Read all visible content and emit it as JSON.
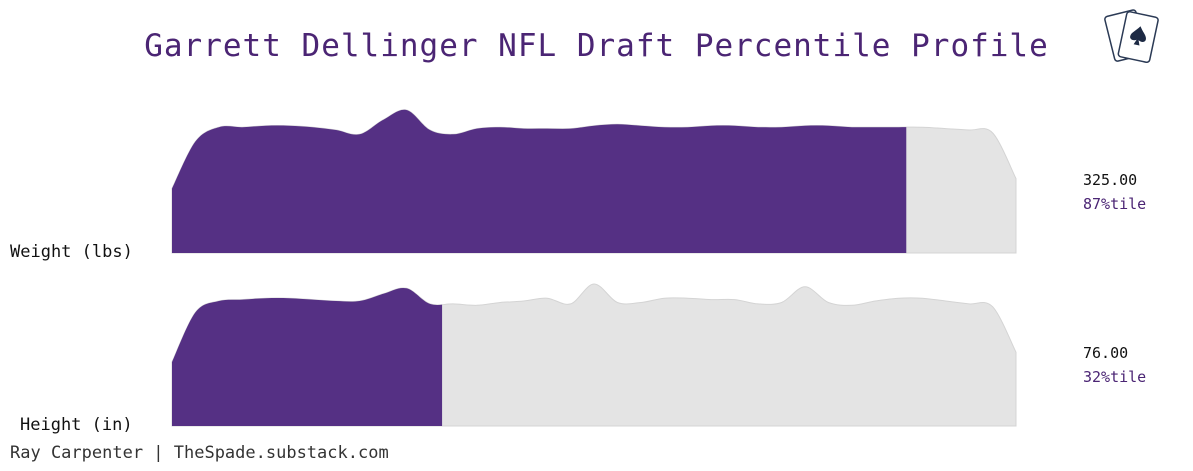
{
  "title": "Garrett Dellinger NFL Draft Percentile Profile",
  "credit": "Ray Carpenter | TheSpade.substack.com",
  "colors": {
    "filled": "#553084",
    "unfilled": "#e4e4e4",
    "unfilled_stroke": "#d4d4d4",
    "title": "#4b2574"
  },
  "chart_data": {
    "type": "area",
    "title": "Garrett Dellinger NFL Draft Percentile Profile",
    "rows": [
      {
        "label": "Weight (lbs)",
        "value": "325.00",
        "percentile": 87,
        "percentile_label": "87%tile",
        "density": [
          0.45,
          0.78,
          0.88,
          0.88,
          0.89,
          0.89,
          0.88,
          0.86,
          0.83,
          0.93,
          1.0,
          0.86,
          0.83,
          0.87,
          0.88,
          0.87,
          0.87,
          0.87,
          0.89,
          0.9,
          0.89,
          0.88,
          0.88,
          0.89,
          0.89,
          0.88,
          0.88,
          0.89,
          0.89,
          0.88,
          0.88,
          0.88,
          0.88,
          0.87,
          0.86,
          0.84,
          0.52
        ]
      },
      {
        "label": "Height (in)",
        "value": "76.00",
        "percentile": 32,
        "percentile_label": "32%tile",
        "density": [
          0.45,
          0.8,
          0.88,
          0.89,
          0.9,
          0.9,
          0.89,
          0.88,
          0.88,
          0.93,
          0.97,
          0.86,
          0.86,
          0.85,
          0.87,
          0.88,
          0.9,
          0.86,
          1.0,
          0.87,
          0.87,
          0.9,
          0.9,
          0.89,
          0.89,
          0.86,
          0.87,
          0.98,
          0.87,
          0.85,
          0.88,
          0.9,
          0.9,
          0.88,
          0.86,
          0.84,
          0.52
        ]
      }
    ]
  }
}
